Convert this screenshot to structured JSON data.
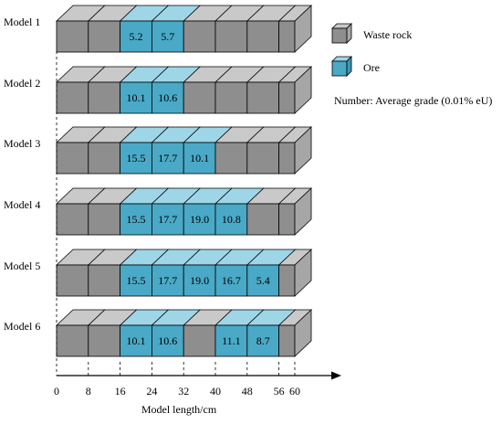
{
  "colors": {
    "waste_front": "#8e8e8e",
    "waste_top": "#c9c9c9",
    "waste_side": "#a6a6a6",
    "ore_front": "#49a9c6",
    "ore_top": "#9ed6e8",
    "ore_side": "#3b97b4",
    "edge": "#000000"
  },
  "legend": {
    "waste_label": "Waste rock",
    "ore_label": "Ore",
    "note": "Number: Average grade (0.01% eU)"
  },
  "axis": {
    "label": "Model length/cm",
    "min": 0,
    "max": 60,
    "ticks": [
      "0",
      "8",
      "16",
      "24",
      "32",
      "40",
      "48",
      "56",
      "60"
    ]
  },
  "models": [
    {
      "name": "Model 1",
      "cells": [
        {
          "type": "waste",
          "grade": ""
        },
        {
          "type": "waste",
          "grade": ""
        },
        {
          "type": "ore",
          "grade": "5.2"
        },
        {
          "type": "ore",
          "grade": "5.7"
        },
        {
          "type": "waste",
          "grade": ""
        },
        {
          "type": "waste",
          "grade": ""
        },
        {
          "type": "waste",
          "grade": ""
        },
        {
          "type": "waste",
          "grade": ""
        }
      ]
    },
    {
      "name": "Model 2",
      "cells": [
        {
          "type": "waste",
          "grade": ""
        },
        {
          "type": "waste",
          "grade": ""
        },
        {
          "type": "ore",
          "grade": "10.1"
        },
        {
          "type": "ore",
          "grade": "10.6"
        },
        {
          "type": "waste",
          "grade": ""
        },
        {
          "type": "waste",
          "grade": ""
        },
        {
          "type": "waste",
          "grade": ""
        },
        {
          "type": "waste",
          "grade": ""
        }
      ]
    },
    {
      "name": "Model 3",
      "cells": [
        {
          "type": "waste",
          "grade": ""
        },
        {
          "type": "waste",
          "grade": ""
        },
        {
          "type": "ore",
          "grade": "15.5"
        },
        {
          "type": "ore",
          "grade": "17.7"
        },
        {
          "type": "ore",
          "grade": "10.1"
        },
        {
          "type": "waste",
          "grade": ""
        },
        {
          "type": "waste",
          "grade": ""
        },
        {
          "type": "waste",
          "grade": ""
        }
      ]
    },
    {
      "name": "Model 4",
      "cells": [
        {
          "type": "waste",
          "grade": ""
        },
        {
          "type": "waste",
          "grade": ""
        },
        {
          "type": "ore",
          "grade": "15.5"
        },
        {
          "type": "ore",
          "grade": "17.7"
        },
        {
          "type": "ore",
          "grade": "19.0"
        },
        {
          "type": "ore",
          "grade": "10.8"
        },
        {
          "type": "waste",
          "grade": ""
        },
        {
          "type": "waste",
          "grade": ""
        }
      ]
    },
    {
      "name": "Model 5",
      "cells": [
        {
          "type": "waste",
          "grade": ""
        },
        {
          "type": "waste",
          "grade": ""
        },
        {
          "type": "ore",
          "grade": "15.5"
        },
        {
          "type": "ore",
          "grade": "17.7"
        },
        {
          "type": "ore",
          "grade": "19.0"
        },
        {
          "type": "ore",
          "grade": "16.7"
        },
        {
          "type": "ore",
          "grade": "5.4"
        },
        {
          "type": "waste",
          "grade": ""
        }
      ]
    },
    {
      "name": "Model 6",
      "cells": [
        {
          "type": "waste",
          "grade": ""
        },
        {
          "type": "waste",
          "grade": ""
        },
        {
          "type": "ore",
          "grade": "10.1"
        },
        {
          "type": "ore",
          "grade": "10.6"
        },
        {
          "type": "waste",
          "grade": ""
        },
        {
          "type": "ore",
          "grade": "11.1"
        },
        {
          "type": "ore",
          "grade": "8.7"
        },
        {
          "type": "waste",
          "grade": ""
        }
      ]
    }
  ]
}
